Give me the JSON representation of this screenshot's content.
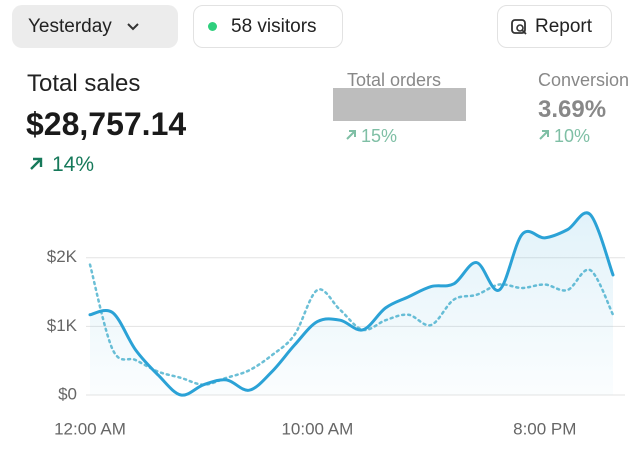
{
  "header": {
    "period": "Yesterday",
    "visitors": "58 visitors",
    "report": "Report"
  },
  "metrics": [
    {
      "label": "Total sales",
      "value": "$28,757.14",
      "change": "14%"
    },
    {
      "label": "Total orders",
      "change": "15%"
    },
    {
      "label": "Conversion",
      "value": "3.69%",
      "change": "10%"
    }
  ],
  "chart_data": {
    "type": "line",
    "x": [
      0,
      1,
      2,
      3,
      4,
      5,
      6,
      7,
      8,
      9,
      10,
      11,
      12,
      13,
      14,
      15,
      16,
      17,
      18,
      19,
      20,
      21,
      22,
      23
    ],
    "xlim": [
      0,
      23
    ],
    "xticks": [
      {
        "value": 0,
        "label": "12:00 AM"
      },
      {
        "value": 10,
        "label": "10:00 AM"
      },
      {
        "value": 20,
        "label": "8:00 PM"
      }
    ],
    "ylim": [
      0,
      2900
    ],
    "yticks": [
      {
        "value": 0,
        "label": "$0"
      },
      {
        "value": 1000,
        "label": "$1K"
      },
      {
        "value": 2000,
        "label": "$2K"
      }
    ],
    "grid": true,
    "series": [
      {
        "color": "#2ba2d6",
        "style": "solid",
        "fill": true,
        "values": [
          1170,
          1200,
          660,
          290,
          0,
          150,
          220,
          70,
          340,
          730,
          1070,
          1090,
          950,
          1270,
          1430,
          1580,
          1620,
          1930,
          1530,
          2340,
          2290,
          2410,
          2630,
          1750
        ]
      },
      {
        "color": "#6bbfd6",
        "style": "dotted",
        "values": [
          1900,
          660,
          510,
          340,
          250,
          150,
          250,
          360,
          580,
          880,
          1530,
          1240,
          950,
          1090,
          1170,
          1020,
          1390,
          1460,
          1610,
          1560,
          1610,
          1530,
          1820,
          1170
        ]
      }
    ]
  }
}
